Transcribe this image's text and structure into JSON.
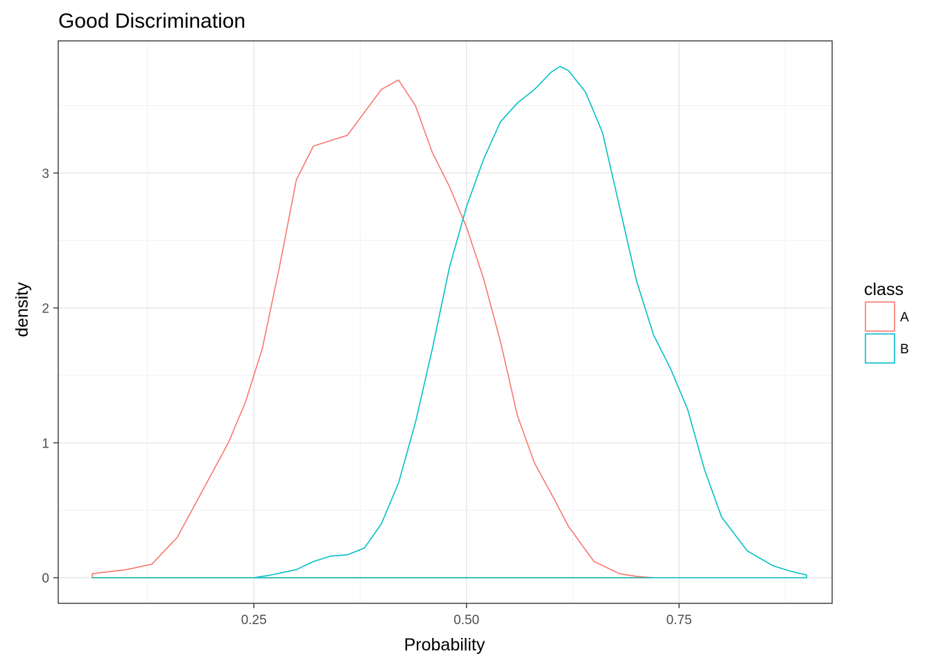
{
  "chart_data": {
    "type": "line",
    "subtype": "density",
    "title": "Good Discrimination",
    "xlabel": "Probability",
    "ylabel": "density",
    "xlim": [
      0.02,
      0.93
    ],
    "ylim": [
      -0.19,
      3.98
    ],
    "x_ticks": [
      0.25,
      0.5,
      0.75
    ],
    "x_tick_labels": [
      "0.25",
      "0.50",
      "0.75"
    ],
    "y_ticks": [
      0,
      1,
      2,
      3
    ],
    "y_tick_labels": [
      "0",
      "1",
      "2",
      "3"
    ],
    "grid": true,
    "legend": {
      "title": "class",
      "position": "right"
    },
    "series": [
      {
        "name": "A",
        "color": "#F8766D",
        "x": [
          0.06,
          0.1,
          0.13,
          0.16,
          0.19,
          0.22,
          0.24,
          0.26,
          0.28,
          0.3,
          0.32,
          0.34,
          0.36,
          0.38,
          0.4,
          0.42,
          0.44,
          0.46,
          0.48,
          0.5,
          0.52,
          0.54,
          0.56,
          0.58,
          0.6,
          0.62,
          0.65,
          0.68,
          0.7,
          0.72
        ],
        "values": [
          0.03,
          0.06,
          0.1,
          0.3,
          0.65,
          1.0,
          1.3,
          1.7,
          2.3,
          2.95,
          3.2,
          3.24,
          3.28,
          3.45,
          3.62,
          3.69,
          3.5,
          3.15,
          2.9,
          2.6,
          2.22,
          1.75,
          1.2,
          0.85,
          0.62,
          0.38,
          0.12,
          0.03,
          0.01,
          0.0
        ]
      },
      {
        "name": "B",
        "color": "#00BFC4",
        "x": [
          0.06,
          0.25,
          0.27,
          0.3,
          0.32,
          0.34,
          0.36,
          0.38,
          0.4,
          0.42,
          0.44,
          0.46,
          0.48,
          0.5,
          0.52,
          0.54,
          0.56,
          0.58,
          0.6,
          0.61,
          0.62,
          0.64,
          0.66,
          0.68,
          0.7,
          0.72,
          0.74,
          0.76,
          0.78,
          0.8,
          0.83,
          0.86,
          0.88,
          0.9
        ],
        "values": [
          0.0,
          0.0,
          0.02,
          0.06,
          0.12,
          0.16,
          0.17,
          0.22,
          0.4,
          0.7,
          1.15,
          1.7,
          2.3,
          2.75,
          3.1,
          3.38,
          3.52,
          3.62,
          3.75,
          3.79,
          3.76,
          3.6,
          3.3,
          2.75,
          2.2,
          1.8,
          1.55,
          1.25,
          0.8,
          0.45,
          0.2,
          0.09,
          0.05,
          0.02
        ]
      }
    ]
  }
}
